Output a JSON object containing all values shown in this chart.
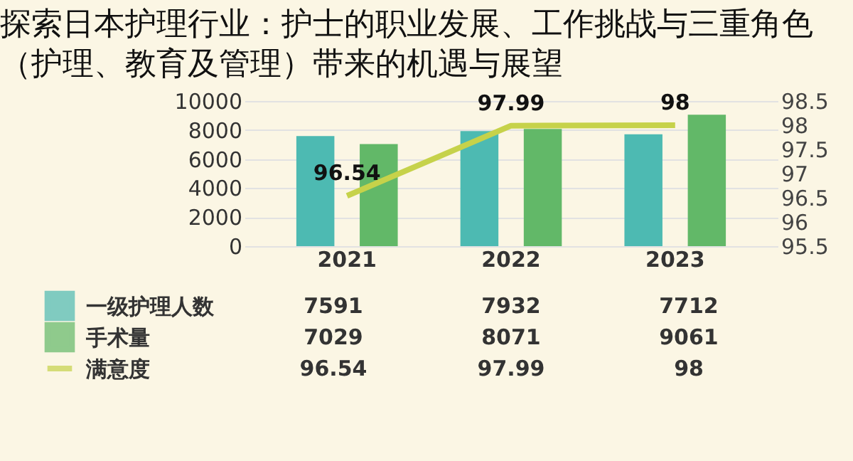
{
  "chart_data": {
    "type": "bar",
    "title": "探索日本护理行业：护士的职业发展、工作挑战与三重角色（护理、教育及管理）带来的机遇与展望",
    "categories": [
      "2021",
      "2022",
      "2023"
    ],
    "series": [
      {
        "name": "一级护理人数",
        "color": "#4dbab2",
        "values": [
          7591,
          7932,
          7712
        ]
      },
      {
        "name": "手术量",
        "color": "#62b868",
        "values": [
          7029,
          8071,
          9061
        ]
      },
      {
        "name": "满意度",
        "type": "line",
        "axis": "y2",
        "color": "#c6d24a",
        "values": [
          96.54,
          97.99,
          98
        ],
        "value_labels": [
          "96.54",
          "97.99",
          "98"
        ]
      }
    ],
    "ylim": [
      0,
      10000
    ],
    "yticks": [
      0,
      2000,
      4000,
      6000,
      8000,
      10000
    ],
    "y2lim": [
      95.5,
      98.5
    ],
    "y2ticks": [
      95.5,
      96,
      96.5,
      97,
      97.5,
      98,
      98.5
    ],
    "data_labels": true,
    "legend": "bottom left",
    "grid": "y",
    "marker": "none",
    "line_style": "solid"
  }
}
